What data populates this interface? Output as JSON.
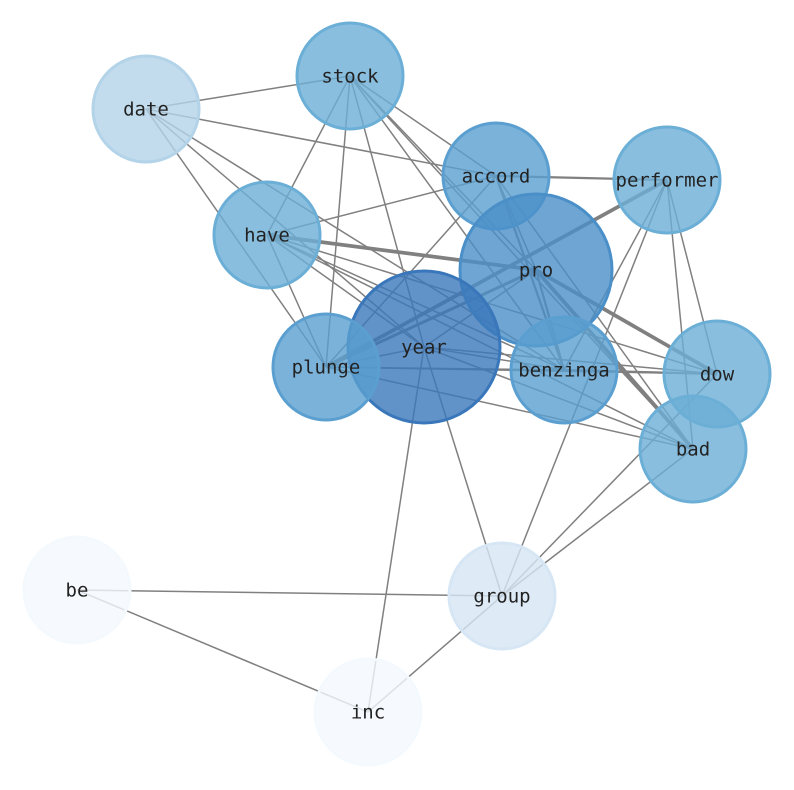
{
  "nodes": [
    {
      "id": "stock",
      "label": "stock",
      "color": "#6baed6"
    },
    {
      "id": "date",
      "label": "date",
      "color": "#b3d3e8"
    },
    {
      "id": "accord",
      "label": "accord",
      "color": "#5a9fd0"
    },
    {
      "id": "performer",
      "label": "performer",
      "color": "#6baed6"
    },
    {
      "id": "have",
      "label": "have",
      "color": "#6baed6"
    },
    {
      "id": "pro",
      "label": "pro",
      "color": "#4a8fc8"
    },
    {
      "id": "year",
      "label": "year",
      "color": "#3a77ba"
    },
    {
      "id": "plunge",
      "label": "plunge",
      "color": "#5a9fd0"
    },
    {
      "id": "benzinga",
      "label": "benzinga",
      "color": "#5a9fd0"
    },
    {
      "id": "dow",
      "label": "dow",
      "color": "#6baed6"
    },
    {
      "id": "bad",
      "label": "bad",
      "color": "#6baed6"
    },
    {
      "id": "be",
      "label": "be",
      "color": "#f4f9fe"
    },
    {
      "id": "group",
      "label": "group",
      "color": "#d6e6f4"
    },
    {
      "id": "inc",
      "label": "inc",
      "color": "#f4f9fe"
    }
  ],
  "edges": [
    [
      "stock",
      "date",
      1
    ],
    [
      "stock",
      "have",
      1
    ],
    [
      "stock",
      "plunge",
      1
    ],
    [
      "stock",
      "year",
      1
    ],
    [
      "stock",
      "accord",
      1
    ],
    [
      "stock",
      "benzinga",
      1
    ],
    [
      "stock",
      "bad",
      1
    ],
    [
      "stock",
      "pro",
      1
    ],
    [
      "date",
      "accord",
      1
    ],
    [
      "date",
      "plunge",
      1
    ],
    [
      "date",
      "year",
      1
    ],
    [
      "date",
      "benzinga",
      1
    ],
    [
      "have",
      "accord",
      1
    ],
    [
      "have",
      "pro",
      2.5
    ],
    [
      "have",
      "year",
      1
    ],
    [
      "have",
      "benzinga",
      1
    ],
    [
      "have",
      "bad",
      1
    ],
    [
      "have",
      "plunge",
      1
    ],
    [
      "have",
      "dow",
      1
    ],
    [
      "accord",
      "performer",
      1.5
    ],
    [
      "accord",
      "plunge",
      1
    ],
    [
      "accord",
      "pro",
      1
    ],
    [
      "accord",
      "benzinga",
      1.5
    ],
    [
      "accord",
      "bad",
      1
    ],
    [
      "performer",
      "plunge",
      2.5
    ],
    [
      "performer",
      "benzinga",
      1
    ],
    [
      "performer",
      "group",
      1
    ],
    [
      "performer",
      "dow",
      1
    ],
    [
      "performer",
      "bad",
      1
    ],
    [
      "pro",
      "plunge",
      2
    ],
    [
      "pro",
      "dow",
      2.5
    ],
    [
      "pro",
      "bad",
      2.5
    ],
    [
      "pro",
      "benzinga",
      1.5
    ],
    [
      "pro",
      "year",
      1
    ],
    [
      "year",
      "plunge",
      1
    ],
    [
      "year",
      "dow",
      1
    ],
    [
      "year",
      "bad",
      1
    ],
    [
      "year",
      "group",
      1
    ],
    [
      "year",
      "inc",
      1
    ],
    [
      "year",
      "benzinga",
      1
    ],
    [
      "plunge",
      "benzinga",
      1
    ],
    [
      "plunge",
      "dow",
      1
    ],
    [
      "plunge",
      "bad",
      1
    ],
    [
      "dow",
      "group",
      1
    ],
    [
      "bad",
      "group",
      1
    ],
    [
      "benzinga",
      "dow",
      1.5
    ],
    [
      "inc",
      "group",
      1
    ],
    [
      "be",
      "group",
      1
    ],
    [
      "be",
      "inc",
      1
    ]
  ],
  "edge_color": "#808080"
}
